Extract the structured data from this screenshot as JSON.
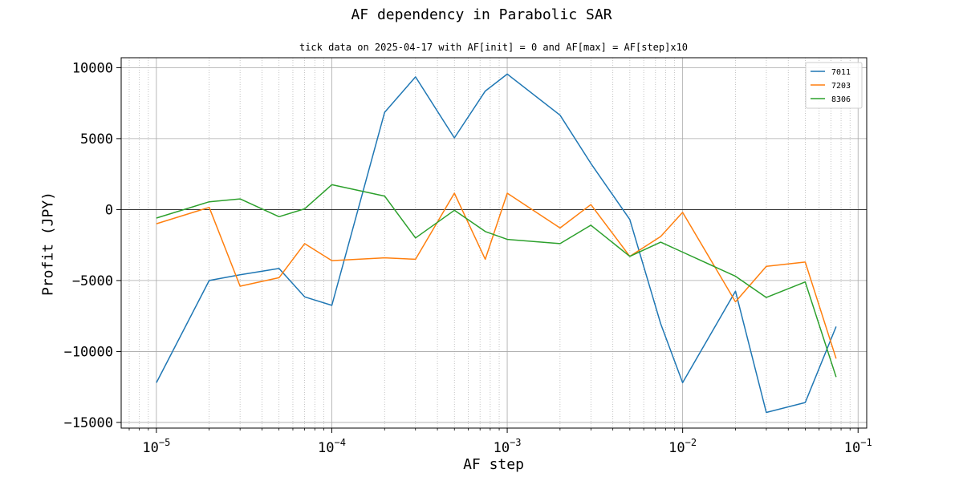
{
  "chart_data": {
    "type": "line",
    "title": "AF dependency in Parabolic SAR",
    "subtitle": "tick data on 2025-04-17 with AF[init] = 0 and AF[max] = AF[step]x10",
    "xlabel": "AF step",
    "ylabel": "Profit (JPY)",
    "xscale": "log",
    "xlim": [
      6.3e-06,
      0.112
    ],
    "ylim": [
      -15400,
      10700
    ],
    "x_ticks": [
      {
        "base": "10",
        "exp": "−5",
        "value": 1e-05
      },
      {
        "base": "10",
        "exp": "−4",
        "value": 0.0001
      },
      {
        "base": "10",
        "exp": "−3",
        "value": 0.001
      },
      {
        "base": "10",
        "exp": "−2",
        "value": 0.01
      },
      {
        "base": "10",
        "exp": "−1",
        "value": 0.1
      }
    ],
    "y_ticks": [
      {
        "label": "10000",
        "value": 10000
      },
      {
        "label": "5000",
        "value": 5000
      },
      {
        "label": "0",
        "value": 0
      },
      {
        "label": "−5000",
        "value": -5000
      },
      {
        "label": "−10000",
        "value": -10000
      },
      {
        "label": "−15000",
        "value": -15000
      }
    ],
    "x": [
      1e-05,
      2e-05,
      3e-05,
      5e-05,
      7e-05,
      0.0001,
      0.0002,
      0.0003,
      0.0005,
      0.00075,
      0.001,
      0.002,
      0.003,
      0.005,
      0.0075,
      0.01,
      0.02,
      0.03,
      0.05,
      0.075
    ],
    "series": [
      {
        "name": "7011",
        "color": "#1f77b4",
        "values": [
          -12200,
          -5000,
          -4600,
          -4150,
          -6150,
          -6750,
          6850,
          9350,
          5050,
          8350,
          9550,
          6650,
          3250,
          -700,
          -8050,
          -12200,
          -5750,
          -14300,
          -13600,
          -8250
        ]
      },
      {
        "name": "7203",
        "color": "#ff7f0e",
        "values": [
          -1000,
          150,
          -5400,
          -4800,
          -2400,
          -3600,
          -3400,
          -3500,
          1150,
          -3500,
          1150,
          -1300,
          350,
          -3300,
          -1900,
          -200,
          -6500,
          -4000,
          -3700,
          -10500
        ]
      },
      {
        "name": "8306",
        "color": "#2ca02c",
        "values": [
          -600,
          550,
          750,
          -500,
          50,
          1750,
          950,
          -2000,
          -50,
          -1550,
          -2100,
          -2400,
          -1100,
          -3300,
          -2300,
          -3000,
          -4700,
          -6200,
          -5100,
          -11800
        ]
      }
    ],
    "grid": true,
    "legend": "top-right"
  }
}
